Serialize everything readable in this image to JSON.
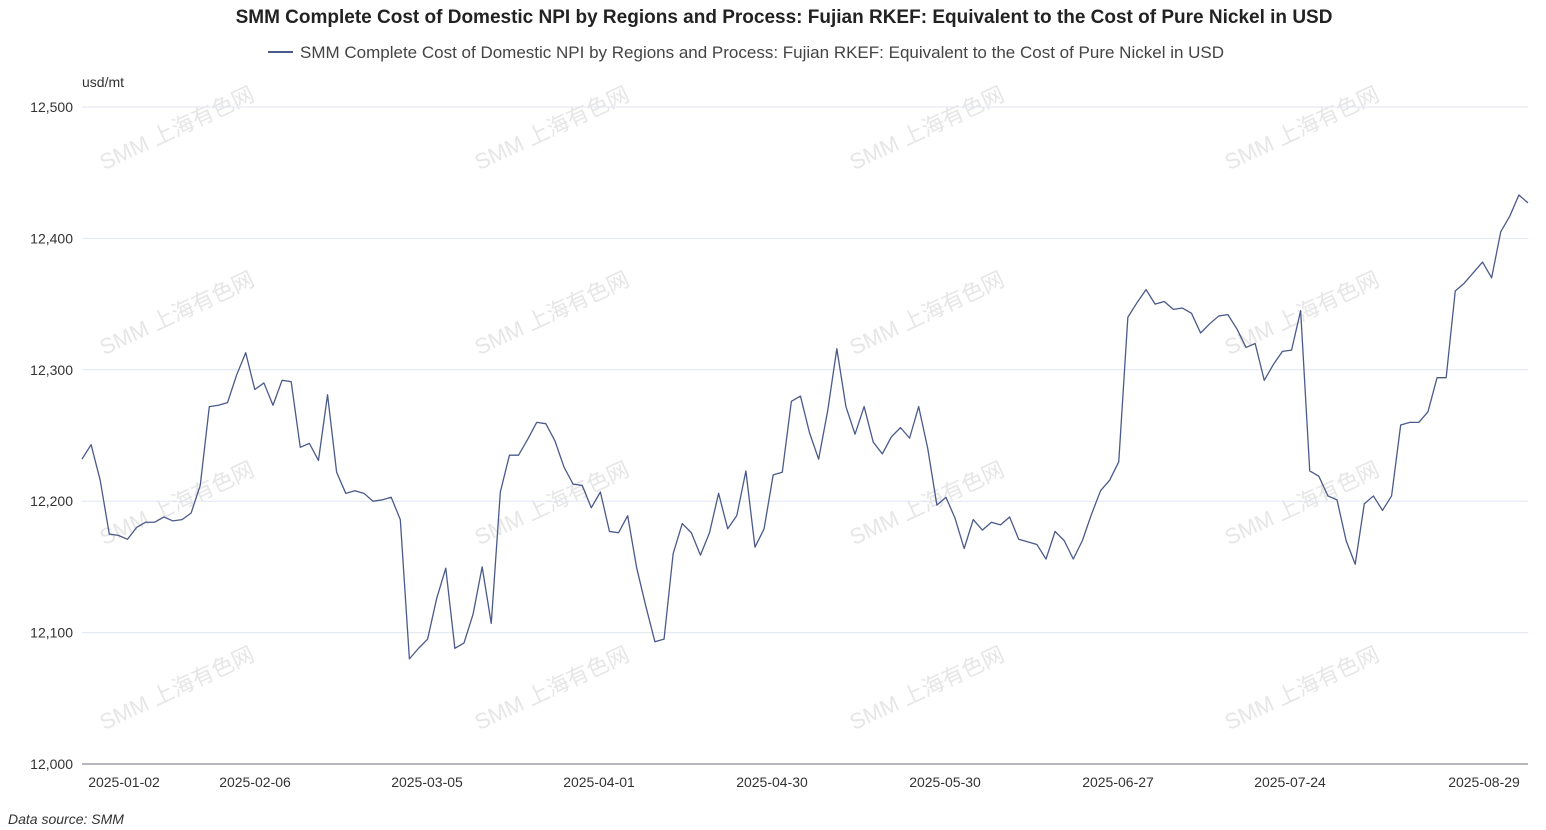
{
  "chart_data": {
    "type": "line",
    "title": "SMM Complete Cost of Domestic NPI by Regions and Process: Fujian RKEF: Equivalent to the Cost of Pure Nickel in USD",
    "ylabel": "usd/mt",
    "ylim": [
      12000,
      12500
    ],
    "yticks": [
      12000,
      12100,
      12200,
      12300,
      12400,
      12500
    ],
    "ytick_labels": [
      "12,000",
      "12,100",
      "12,200",
      "12,300",
      "12,400",
      "12,500"
    ],
    "xtick_labels": [
      "2025-01-02",
      "2025-02-06",
      "2025-03-05",
      "2025-04-01",
      "2025-04-30",
      "2025-05-30",
      "2025-06-27",
      "2025-07-24",
      "2025-08-29"
    ],
    "grid": true,
    "legend_position": "top-center",
    "series": [
      {
        "name": "SMM Complete Cost of Domestic NPI by Regions and Process: Fujian RKEF: Equivalent to the Cost of Pure Nickel in USD",
        "color": "#4a5a8a",
        "values": [
          12232,
          12243,
          12216,
          12175,
          12174,
          12171,
          12180,
          12184,
          12184,
          12188,
          12185,
          12186,
          12191,
          12212,
          12272,
          12273,
          12275,
          12296,
          12313,
          12285,
          12290,
          12273,
          12292,
          12291,
          12241,
          12244,
          12231,
          12281,
          12222,
          12206,
          12208,
          12206,
          12200,
          12201,
          12203,
          12186,
          12080,
          12088,
          12095,
          12126,
          12149,
          12088,
          12092,
          12114,
          12150,
          12107,
          12207,
          12235,
          12235,
          12247,
          12260,
          12259,
          12246,
          12226,
          12213,
          12212,
          12195,
          12207,
          12177,
          12176,
          12189,
          12149,
          12120,
          12093,
          12095,
          12160,
          12183,
          12176,
          12159,
          12176,
          12206,
          12179,
          12189,
          12223,
          12165,
          12179,
          12220,
          12222,
          12276,
          12280,
          12252,
          12232,
          12269,
          12316,
          12272,
          12251,
          12272,
          12245,
          12236,
          12249,
          12256,
          12248,
          12272,
          12240,
          12197,
          12203,
          12187,
          12164,
          12186,
          12178,
          12184,
          12182,
          12188,
          12171,
          12169,
          12167,
          12156,
          12177,
          12170,
          12156,
          12170,
          12190,
          12208,
          12216,
          12230,
          12340,
          12351,
          12361,
          12350,
          12352,
          12346,
          12347,
          12343,
          12328,
          12335,
          12341,
          12342,
          12331,
          12317,
          12320,
          12292,
          12304,
          12314,
          12315,
          12345,
          12223,
          12219,
          12204,
          12201,
          12170,
          12152,
          12198,
          12204,
          12193,
          12204,
          12258,
          12260,
          12260,
          12268,
          12294,
          12294,
          12360,
          12366,
          12374,
          12382,
          12370,
          12405,
          12417,
          12433,
          12427
        ]
      }
    ]
  },
  "footer": {
    "source": "Data source:  SMM"
  },
  "watermark": "SMM 上海有色网"
}
